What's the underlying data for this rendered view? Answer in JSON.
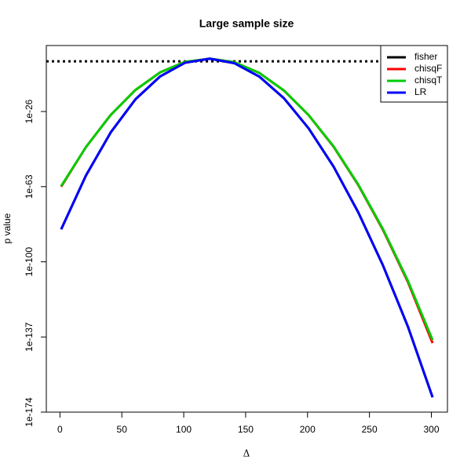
{
  "chart_data": {
    "type": "line",
    "title": "Large sample size",
    "xlabel": "Δ",
    "ylabel": "p value",
    "log_y": true,
    "legend": "topright",
    "xlim": [
      -11,
      313
    ],
    "xticks": [
      0,
      50,
      100,
      150,
      200,
      250,
      300
    ],
    "ylim": [
      1e-174,
      3000000.0
    ],
    "yticks": [
      1e-26,
      1e-63,
      1e-100,
      1e-137,
      1e-174
    ],
    "reference_line": 0.05,
    "x": [
      1,
      21,
      41,
      61,
      81,
      101,
      121,
      141,
      161,
      181,
      201,
      221,
      241,
      261,
      281,
      301
    ],
    "series": [
      {
        "name": "fisher",
        "color": "#000000",
        "values": [
          1e-84,
          3e-58,
          5e-37,
          1e-20,
          2e-09,
          0.01,
          0.98,
          0.006,
          1.6e-09,
          3e-20,
          4e-35,
          8e-54,
          2e-76,
          1.3e-102,
          1.6e-132,
          2e-167
        ]
      },
      {
        "name": "chisqF",
        "color": "#ff0000",
        "values": [
          1e-63,
          3e-44,
          2e-28,
          4e-16,
          2e-07,
          0.028,
          0.98,
          0.018,
          1e-07,
          2e-16,
          1.3e-28,
          5e-44,
          6e-63,
          4e-85,
          1.3e-110,
          1e-140
        ]
      },
      {
        "name": "chisqT",
        "color": "#00cd00",
        "values": [
          2e-63,
          3e-44,
          2e-28,
          4e-16,
          2e-07,
          0.028,
          0.98,
          0.018,
          1e-07,
          2e-16,
          1.5e-28,
          7e-44,
          1e-62,
          1e-84,
          5e-110,
          3e-139
        ]
      },
      {
        "name": "LR",
        "color": "#0000ff",
        "values": [
          1e-84,
          3e-58,
          5e-37,
          1e-20,
          2e-09,
          0.01,
          0.98,
          0.006,
          1.6e-09,
          3e-20,
          4e-35,
          8e-54,
          2e-76,
          1.3e-102,
          1.6e-132,
          2e-167
        ]
      }
    ]
  }
}
